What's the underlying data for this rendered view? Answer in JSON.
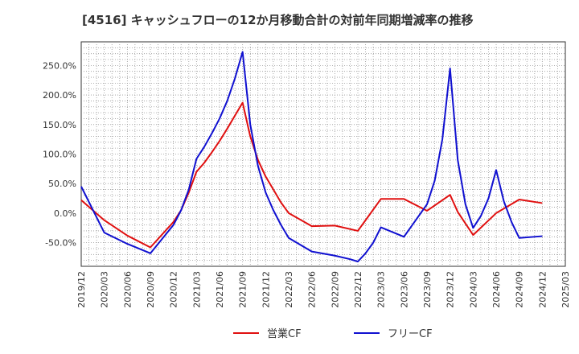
{
  "chart_data": {
    "type": "line",
    "title": "[4516]  キャッシュフローの12か月移動合計の対前年同期増減率の推移",
    "xlabel": "",
    "ylabel": "",
    "x_ticks": [
      "2019/12",
      "2020/03",
      "2020/06",
      "2020/09",
      "2020/12",
      "2021/03",
      "2021/06",
      "2021/09",
      "2021/12",
      "2022/03",
      "2022/06",
      "2022/09",
      "2022/12",
      "2023/03",
      "2023/06",
      "2023/09",
      "2023/12",
      "2024/03",
      "2024/06",
      "2024/09",
      "2024/12",
      "2025/03"
    ],
    "y_ticks": [
      "-50.0%",
      "0.0%",
      "50.0%",
      "100.0%",
      "150.0%",
      "200.0%",
      "250.0%"
    ],
    "y_tick_values": [
      -50,
      0,
      50,
      100,
      150,
      200,
      250
    ],
    "ylim": [
      -90,
      290
    ],
    "xlim": [
      "2019/12",
      "2025/03"
    ],
    "grid": true,
    "legend_position": "bottom",
    "series": [
      {
        "name": "営業CF",
        "color": "#e01010",
        "points": [
          [
            "2019/12",
            22
          ],
          [
            "2020/03",
            -12
          ],
          [
            "2020/06",
            -38
          ],
          [
            "2020/09",
            -58
          ],
          [
            "2020/12",
            -15
          ],
          [
            "2021/01",
            5
          ],
          [
            "2021/02",
            35
          ],
          [
            "2021/03",
            70
          ],
          [
            "2021/04",
            85
          ],
          [
            "2021/05",
            103
          ],
          [
            "2021/06",
            122
          ],
          [
            "2021/07",
            143
          ],
          [
            "2021/08",
            165
          ],
          [
            "2021/09",
            187
          ],
          [
            "2021/10",
            130
          ],
          [
            "2021/11",
            90
          ],
          [
            "2021/12",
            62
          ],
          [
            "2022/01",
            40
          ],
          [
            "2022/02",
            18
          ],
          [
            "2022/03",
            0
          ],
          [
            "2022/06",
            -22
          ],
          [
            "2022/09",
            -21
          ],
          [
            "2022/12",
            -30
          ],
          [
            "2023/01",
            -12
          ],
          [
            "2023/03",
            24
          ],
          [
            "2023/06",
            24
          ],
          [
            "2023/09",
            4
          ],
          [
            "2023/12",
            31
          ],
          [
            "2024/01",
            2
          ],
          [
            "2024/03",
            -37
          ],
          [
            "2024/06",
            0
          ],
          [
            "2024/09",
            23
          ],
          [
            "2024/12",
            17
          ]
        ]
      },
      {
        "name": "フリーCF",
        "color": "#1010d0",
        "points": [
          [
            "2019/12",
            45
          ],
          [
            "2020/03",
            -33
          ],
          [
            "2020/06",
            -52
          ],
          [
            "2020/09",
            -68
          ],
          [
            "2020/12",
            -20
          ],
          [
            "2021/01",
            5
          ],
          [
            "2021/02",
            40
          ],
          [
            "2021/03",
            92
          ],
          [
            "2021/04",
            112
          ],
          [
            "2021/05",
            135
          ],
          [
            "2021/06",
            160
          ],
          [
            "2021/07",
            190
          ],
          [
            "2021/08",
            228
          ],
          [
            "2021/09",
            273
          ],
          [
            "2021/10",
            150
          ],
          [
            "2021/11",
            80
          ],
          [
            "2021/12",
            35
          ],
          [
            "2022/01",
            5
          ],
          [
            "2022/02",
            -20
          ],
          [
            "2022/03",
            -42
          ],
          [
            "2022/06",
            -65
          ],
          [
            "2022/09",
            -72
          ],
          [
            "2022/11",
            -78
          ],
          [
            "2022/12",
            -82
          ],
          [
            "2023/01",
            -68
          ],
          [
            "2023/02",
            -50
          ],
          [
            "2023/03",
            -24
          ],
          [
            "2023/06",
            -40
          ],
          [
            "2023/09",
            15
          ],
          [
            "2023/10",
            55
          ],
          [
            "2023/11",
            125
          ],
          [
            "2023/12",
            245
          ],
          [
            "2024/01",
            90
          ],
          [
            "2024/02",
            15
          ],
          [
            "2024/03",
            -25
          ],
          [
            "2024/04",
            -5
          ],
          [
            "2024/05",
            25
          ],
          [
            "2024/06",
            73
          ],
          [
            "2024/07",
            20
          ],
          [
            "2024/08",
            -15
          ],
          [
            "2024/09",
            -42
          ],
          [
            "2024/12",
            -39
          ]
        ]
      }
    ]
  }
}
